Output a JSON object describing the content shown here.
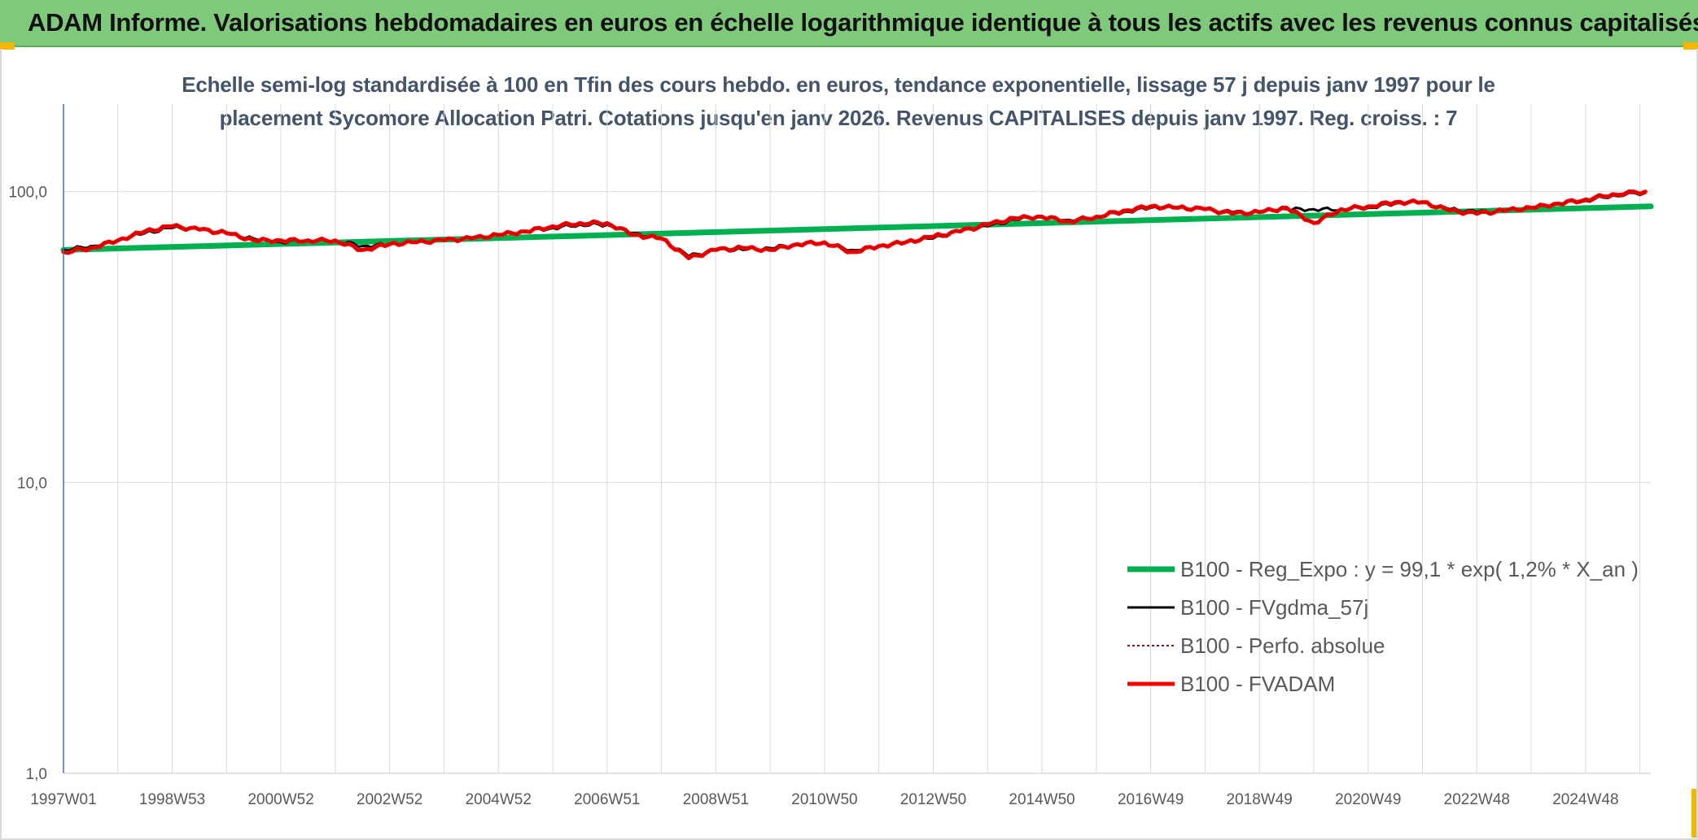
{
  "banner": {
    "title": "ADAM Informe. Valorisations hebdomadaires en euros en échelle logarithmique identique à tous les actifs avec les revenus connus capitalisés"
  },
  "colors": {
    "banner_bg": "#7fc97a",
    "accent_corner": "#f2b705",
    "regression": "#00b050",
    "fvgdma": "#000000",
    "perfo": "#c00000",
    "fvadam": "#ff0000"
  },
  "chart_data": {
    "type": "line",
    "title_line1": "Echelle semi-log standardisée à 100 en Tfin des cours hebdo. en euros, tendance exponentielle, lissage 57 j depuis janv 1997 pour le",
    "title_line2": "placement Sycomore Allocation Patri. Cotations jusqu'en janv 2026. Revenus CAPITALISES depuis janv 1997. Reg. croiss. : 7",
    "y_scale": "log",
    "ylim": [
      1,
      200
    ],
    "y_ticks": [
      {
        "value": 1,
        "label": "1,0"
      },
      {
        "value": 10,
        "label": "10,0"
      },
      {
        "value": 100,
        "label": "100,0"
      }
    ],
    "xlim": [
      1997.0,
      2026.2
    ],
    "x_ticks": [
      {
        "value": 1997.0,
        "label": "1997W01"
      },
      {
        "value": 1999.0,
        "label": "1998W53"
      },
      {
        "value": 2001.0,
        "label": "2000W52"
      },
      {
        "value": 2003.0,
        "label": "2002W52"
      },
      {
        "value": 2005.0,
        "label": "2004W52"
      },
      {
        "value": 2007.0,
        "label": "2006W51"
      },
      {
        "value": 2009.0,
        "label": "2008W51"
      },
      {
        "value": 2011.0,
        "label": "2010W50"
      },
      {
        "value": 2013.0,
        "label": "2012W50"
      },
      {
        "value": 2015.0,
        "label": "2014W50"
      },
      {
        "value": 2017.0,
        "label": "2016W49"
      },
      {
        "value": 2019.0,
        "label": "2018W49"
      },
      {
        "value": 2021.0,
        "label": "2020W49"
      },
      {
        "value": 2023.0,
        "label": "2022W48"
      },
      {
        "value": 2025.0,
        "label": "2024W48"
      }
    ],
    "legend_position": "bottom-right",
    "series": [
      {
        "name": "B100 - Reg_Expo : y = 99,1 * exp( 1,2% *  X_an )",
        "style": "thick",
        "x": [
          1997.0,
          2026.2
        ],
        "y": [
          63.0,
          89.0
        ]
      },
      {
        "name": "B100 - FVgdma_57j",
        "style": "thin",
        "x": [
          1997.0,
          1997.5,
          1998.0,
          1998.5,
          1999.0,
          1999.5,
          2000.0,
          2000.5,
          2001.0,
          2001.5,
          2002.0,
          2002.5,
          2003.0,
          2003.5,
          2004.0,
          2004.5,
          2005.0,
          2005.5,
          2006.0,
          2006.5,
          2007.0,
          2007.5,
          2008.0,
          2008.5,
          2009.0,
          2009.5,
          2010.0,
          2010.5,
          2011.0,
          2011.5,
          2012.0,
          2012.5,
          2013.0,
          2013.5,
          2014.0,
          2014.5,
          2015.0,
          2015.5,
          2016.0,
          2016.5,
          2017.0,
          2017.5,
          2018.0,
          2018.5,
          2019.0,
          2019.5,
          2020.0,
          2020.5,
          2021.0,
          2021.5,
          2022.0,
          2022.5,
          2023.0,
          2023.5,
          2024.0,
          2024.5,
          2025.0,
          2025.5,
          2026.1
        ],
        "y": [
          63,
          65,
          68,
          72,
          75,
          74,
          72,
          69,
          67,
          68,
          68,
          65,
          66,
          67,
          68,
          69,
          71,
          73,
          75,
          77,
          77,
          72,
          69,
          60,
          63,
          63,
          64,
          66,
          67,
          63,
          65,
          67,
          69,
          73,
          76,
          80,
          82,
          80,
          82,
          85,
          88,
          88,
          87,
          85,
          85,
          87,
          87,
          87,
          88,
          91,
          92,
          87,
          85,
          86,
          88,
          91,
          93,
          97,
          99
        ]
      },
      {
        "name": "B100 - Perfo. absolue",
        "style": "dotted",
        "x": [
          1997.0,
          1997.5,
          1998.0,
          1998.5,
          1999.0,
          1999.5,
          2000.0,
          2000.5,
          2001.0,
          2001.5,
          2002.0,
          2002.5,
          2003.0,
          2003.5,
          2004.0,
          2004.5,
          2005.0,
          2005.5,
          2006.0,
          2006.5,
          2007.0,
          2007.5,
          2008.0,
          2008.5,
          2009.0,
          2009.5,
          2010.0,
          2010.5,
          2011.0,
          2011.5,
          2012.0,
          2012.5,
          2013.0,
          2013.5,
          2014.0,
          2014.5,
          2015.0,
          2015.5,
          2016.0,
          2016.5,
          2017.0,
          2017.5,
          2018.0,
          2018.5,
          2019.0,
          2019.5,
          2020.0,
          2020.5,
          2021.0,
          2021.5,
          2022.0,
          2022.5,
          2023.0,
          2023.5,
          2024.0,
          2024.5,
          2025.0,
          2025.5,
          2026.1
        ],
        "y": [
          62,
          64,
          68,
          73,
          76,
          74,
          72,
          68,
          68,
          68,
          68,
          63,
          66,
          67,
          68,
          69,
          71,
          73,
          76,
          78,
          78,
          71,
          69,
          59,
          63,
          64,
          63,
          66,
          67,
          62,
          65,
          67,
          70,
          73,
          77,
          81,
          82,
          79,
          82,
          86,
          89,
          88,
          87,
          84,
          85,
          88,
          78,
          87,
          89,
          92,
          92,
          86,
          84,
          86,
          88,
          91,
          94,
          98,
          100
        ]
      },
      {
        "name": "B100 - FVADAM",
        "style": "thick",
        "x": [
          1997.0,
          1997.5,
          1998.0,
          1998.5,
          1999.0,
          1999.5,
          2000.0,
          2000.5,
          2001.0,
          2001.5,
          2002.0,
          2002.5,
          2003.0,
          2003.5,
          2004.0,
          2004.5,
          2005.0,
          2005.5,
          2006.0,
          2006.5,
          2007.0,
          2007.5,
          2008.0,
          2008.5,
          2009.0,
          2009.5,
          2010.0,
          2010.5,
          2011.0,
          2011.5,
          2012.0,
          2012.5,
          2013.0,
          2013.5,
          2014.0,
          2014.5,
          2015.0,
          2015.5,
          2016.0,
          2016.5,
          2017.0,
          2017.5,
          2018.0,
          2018.5,
          2019.0,
          2019.5,
          2020.0,
          2020.5,
          2021.0,
          2021.5,
          2022.0,
          2022.5,
          2023.0,
          2023.5,
          2024.0,
          2024.5,
          2025.0,
          2025.5,
          2026.1
        ],
        "y": [
          62,
          64,
          68,
          73,
          76,
          74,
          72,
          68,
          68,
          68,
          68,
          63,
          66,
          67,
          68,
          69,
          71,
          73,
          76,
          78,
          78,
          71,
          69,
          59,
          63,
          64,
          63,
          66,
          67,
          62,
          65,
          67,
          70,
          73,
          77,
          81,
          82,
          79,
          82,
          86,
          89,
          88,
          87,
          84,
          85,
          88,
          78,
          87,
          89,
          92,
          92,
          86,
          84,
          86,
          88,
          91,
          94,
          98,
          100
        ]
      }
    ]
  }
}
